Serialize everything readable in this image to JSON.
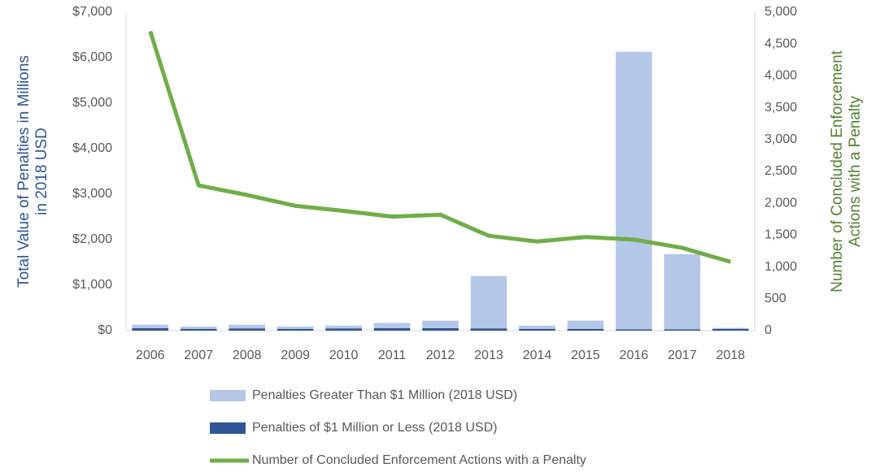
{
  "chart_data": {
    "type": "bar",
    "y_label": [
      "Total Value of Penalties in Millions",
      "in 2018 USD"
    ],
    "y2_label": [
      "Number of Concluded Enforcement",
      "Actions with a Penalty"
    ],
    "categories": [
      "2006",
      "2007",
      "2008",
      "2009",
      "2010",
      "2011",
      "2012",
      "2013",
      "2014",
      "2015",
      "2016",
      "2017",
      "2018"
    ],
    "series": [
      {
        "name": "Penalties Greater Than $1 Million (2018 USD)",
        "color": "#b4c7e7",
        "type": "bar",
        "stack": true,
        "values": [
          75,
          50,
          80,
          50,
          60,
          115,
          165,
          1150,
          70,
          180,
          6100,
          1650,
          20
        ]
      },
      {
        "name": "Penalties of $1 Million or Less (2018 USD)",
        "color": "#2f5597",
        "type": "bar",
        "stack": true,
        "values": [
          55,
          40,
          50,
          40,
          50,
          55,
          55,
          50,
          40,
          40,
          30,
          30,
          40
        ]
      },
      {
        "name": "Number of Concluded Enforcement Actions with a Penalty",
        "color": "#70ad47",
        "type": "line",
        "axis": "y2",
        "values": [
          4700,
          2280,
          2130,
          1960,
          1880,
          1790,
          1820,
          1490,
          1400,
          1470,
          1430,
          1300,
          1080
        ]
      }
    ],
    "ylim": [
      0,
      7000
    ],
    "yticks": [
      {
        "value": 0,
        "label": "$0"
      },
      {
        "value": 1000,
        "label": "$1,000"
      },
      {
        "value": 2000,
        "label": "$2,000"
      },
      {
        "value": 3000,
        "label": "$3,000"
      },
      {
        "value": 4000,
        "label": "$4,000"
      },
      {
        "value": 5000,
        "label": "$5,000"
      },
      {
        "value": 6000,
        "label": "$6,000"
      },
      {
        "value": 7000,
        "label": "$7,000"
      }
    ],
    "y2lim": [
      0,
      5000
    ],
    "y2ticks": [
      0,
      500,
      {
        "value": 1000,
        "label": "1,000"
      },
      {
        "value": 1500,
        "label": "1,500"
      },
      {
        "value": 2000,
        "label": "2,000"
      },
      {
        "value": 2500,
        "label": "2,500"
      },
      {
        "value": 3000,
        "label": "3,000"
      },
      {
        "value": 3500,
        "label": "3,500"
      },
      {
        "value": 4000,
        "label": "4,000"
      },
      {
        "value": 4500,
        "label": "4,500"
      },
      {
        "value": 5000,
        "label": "5,000"
      }
    ],
    "legend": "bottom"
  }
}
